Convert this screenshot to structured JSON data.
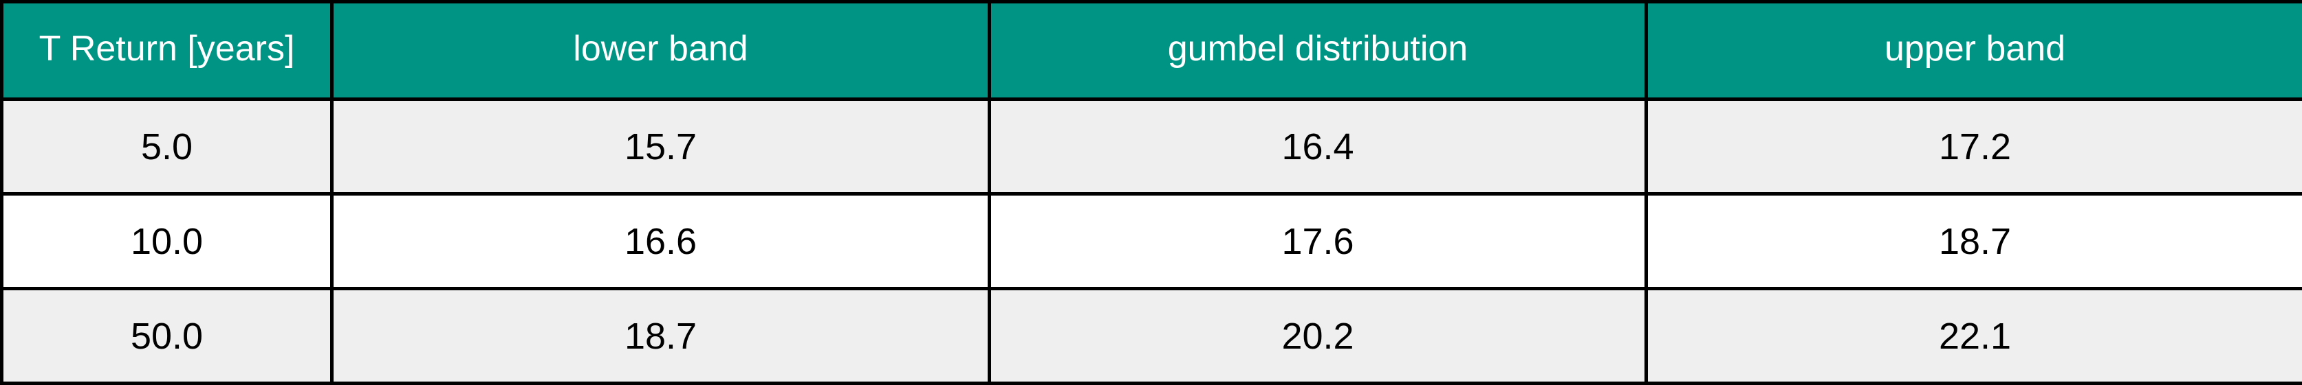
{
  "chart_data": {
    "type": "table",
    "columns": [
      "T Return [years]",
      "lower band",
      "gumbel distribution",
      "upper band"
    ],
    "rows": [
      [
        "5.0",
        "15.7",
        "16.4",
        "17.2"
      ],
      [
        "10.0",
        "16.6",
        "17.6",
        "18.7"
      ],
      [
        "50.0",
        "18.7",
        "20.2",
        "22.1"
      ]
    ]
  },
  "colors": {
    "header_bg": "#009485",
    "header_text": "#ffffff",
    "row_shaded": "#efefef",
    "row_plain": "#ffffff",
    "border": "#000000"
  }
}
